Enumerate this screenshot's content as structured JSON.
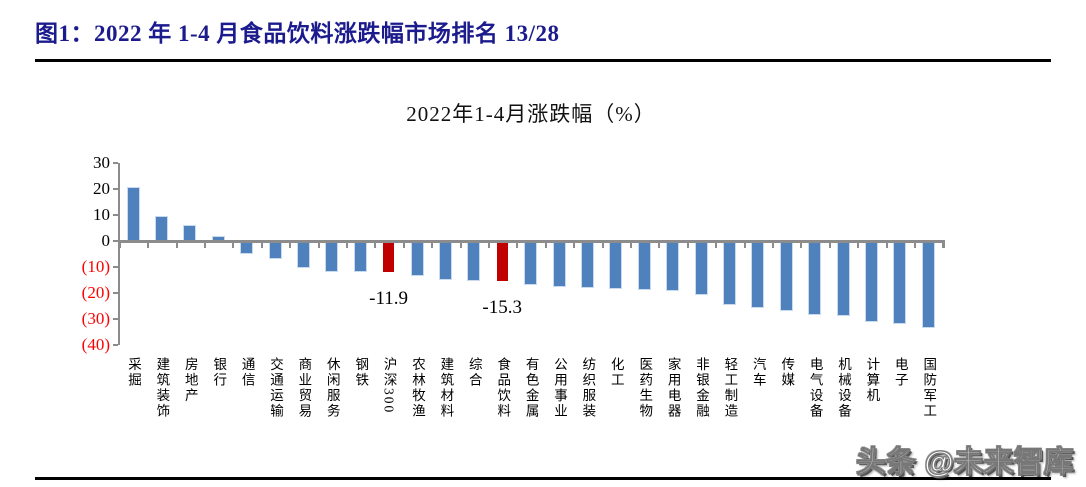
{
  "figure": {
    "caption": "图1：2022 年 1-4 月食品饮料涨跌幅市场排名 13/28",
    "watermark": "头条 @未来智库"
  },
  "chart_data": {
    "type": "bar",
    "title": "2022年1-4月涨跌幅（%）",
    "xlabel": "",
    "ylabel": "",
    "ylim": [
      -40,
      30
    ],
    "ytick_interval": 10,
    "grid": false,
    "legend": "none",
    "categories": [
      "采掘",
      "建筑装饰",
      "房地产",
      "银行",
      "通信",
      "交通运输",
      "商业贸易",
      "休闲服务",
      "钢铁",
      "沪深300",
      "农林牧渔",
      "建筑材料",
      "综合",
      "食品饮料",
      "有色金属",
      "公用事业",
      "纺织服装",
      "化工",
      "医药生物",
      "家用电器",
      "非银金融",
      "轻工制造",
      "汽车",
      "传媒",
      "电气设备",
      "机械设备",
      "计算机",
      "电子",
      "国防军工"
    ],
    "values": [
      20.3,
      9.2,
      5.6,
      1.5,
      -4.6,
      -6.5,
      -10.0,
      -11.5,
      -11.7,
      -11.9,
      -12.9,
      -14.8,
      -15.0,
      -15.3,
      -16.4,
      -17.4,
      -17.7,
      -17.9,
      -18.5,
      -19.0,
      -20.3,
      -24.3,
      -25.4,
      -26.4,
      -27.9,
      -28.3,
      -30.8,
      -31.7,
      -33.1
    ],
    "highlighted": [
      {
        "index": 9,
        "category": "沪深300",
        "value": -11.9,
        "data_label": "-11.9"
      },
      {
        "index": 13,
        "category": "食品饮料",
        "value": -15.3,
        "data_label": "-15.3"
      }
    ],
    "yticks": [
      {
        "label": "30",
        "value": 30,
        "color": "#000000"
      },
      {
        "label": "20",
        "value": 20,
        "color": "#000000"
      },
      {
        "label": "10",
        "value": 10,
        "color": "#000000"
      },
      {
        "label": "0",
        "value": 0,
        "color": "#000000"
      },
      {
        "label": "(10)",
        "value": -10,
        "color": "#FF0000"
      },
      {
        "label": "(20)",
        "value": -20,
        "color": "#FF0000"
      },
      {
        "label": "(30)",
        "value": -30,
        "color": "#FF0000"
      },
      {
        "label": "(40)",
        "value": -40,
        "color": "#FF0000"
      }
    ],
    "colors": {
      "bar": "#4F81BD",
      "bar_edge": "#C9D9EE",
      "highlight": "#C00000",
      "axis": "#8C8C8C",
      "caption_text": "#1B1B8E",
      "negative_tick_text": "#FF0000"
    }
  }
}
